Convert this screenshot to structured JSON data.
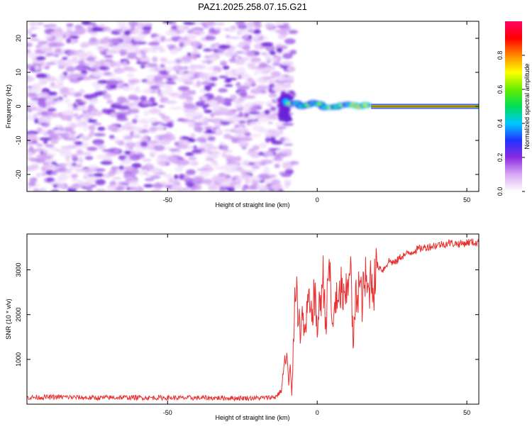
{
  "title": "PAZ1.2025.258.07.15.G21",
  "chart_data": [
    {
      "type": "heatmap",
      "xlabel": "Height of straight line (km)",
      "ylabel": "Frequency (Hz)",
      "xlim": [
        -97,
        54
      ],
      "ylim": [
        -25,
        25
      ],
      "xticks": [
        -50,
        0,
        50
      ],
      "yticks": [
        -20,
        -10,
        0,
        10,
        20
      ],
      "colorbar": {
        "label": "Normalized spectral amplitude",
        "range": [
          0,
          1
        ],
        "ticks": [
          0.0,
          0.2,
          0.4,
          0.6,
          0.8
        ],
        "tick_labels": [
          "0.0",
          "0.2",
          "0.4",
          "0.6",
          "0.8"
        ],
        "colors": [
          "#ffffff",
          "#d9a8f5",
          "#8a2be2",
          "#2233ff",
          "#00c8ff",
          "#00dd55",
          "#66ee00",
          "#ffff00",
          "#ff8800",
          "#ff0000",
          "#ff0066"
        ]
      },
      "description_values": {
        "noise_region_x": [
          -97,
          -11
        ],
        "transition_x": [
          -11,
          18
        ],
        "tone_frequency_hz": 0,
        "tone_start_x": 18,
        "tone_amplitude": 0.85
      }
    },
    {
      "type": "line",
      "xlabel": "Height of straight line (km)",
      "ylabel": "SNR (10 * v/v)",
      "xlim": [
        -97,
        54
      ],
      "ylim": [
        0,
        3800
      ],
      "xticks": [
        -50,
        0,
        50
      ],
      "yticks": [
        1000,
        2000,
        3000
      ],
      "line_color": "#e83030",
      "x": [
        -97,
        -85,
        -75,
        -65,
        -55,
        -45,
        -35,
        -25,
        -18,
        -14,
        -12,
        -11,
        -10,
        -9.5,
        -9,
        -8.5,
        -8,
        -7.5,
        -7,
        -6.5,
        -6,
        -5.5,
        -5,
        -4,
        -3,
        -2,
        -1,
        0,
        1,
        2,
        3,
        4,
        5,
        6,
        7,
        8,
        9,
        10,
        11,
        12,
        13,
        14,
        15,
        16,
        17,
        18,
        19,
        20,
        22,
        24,
        26,
        28,
        30,
        33,
        36,
        40,
        44,
        48,
        51,
        54
      ],
      "y": [
        150,
        160,
        140,
        150,
        145,
        140,
        140,
        135,
        140,
        160,
        300,
        900,
        1050,
        400,
        800,
        200,
        1200,
        2500,
        2950,
        1900,
        2400,
        1300,
        2100,
        1500,
        2300,
        1900,
        2500,
        1700,
        2300,
        2800,
        1800,
        3300,
        1600,
        2400,
        2100,
        2650,
        2200,
        2500,
        3400,
        1300,
        2400,
        2700,
        2300,
        2800,
        2450,
        2900,
        2650,
        3100,
        3000,
        3200,
        3150,
        3300,
        3350,
        3450,
        3500,
        3550,
        3600,
        3580,
        3620,
        3600
      ]
    }
  ]
}
